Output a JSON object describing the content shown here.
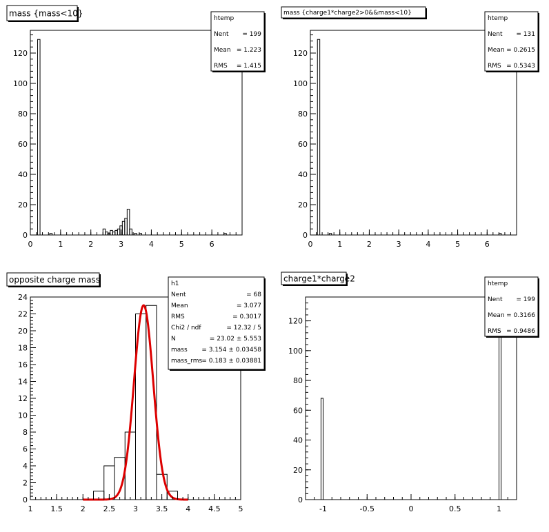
{
  "chart_data": [
    {
      "type": "histogram",
      "title": "mass {mass<10}",
      "xlim": [
        0,
        7
      ],
      "ylim": [
        0,
        135
      ],
      "xticks": [
        0,
        1,
        2,
        3,
        4,
        5,
        6
      ],
      "xtick_labels": [
        "0",
        "1",
        "2",
        "3",
        "4",
        "5",
        "6"
      ],
      "yticks": [
        0,
        20,
        40,
        60,
        80,
        100,
        120
      ],
      "ytick_labels": [
        "0",
        "20",
        "40",
        "60",
        "80",
        "100",
        "120"
      ],
      "bins": [
        {
          "x0": 0.24,
          "x1": 0.32,
          "y": 129
        },
        {
          "x0": 0.64,
          "x1": 0.72,
          "y": 1
        },
        {
          "x0": 2.4,
          "x1": 2.48,
          "y": 4
        },
        {
          "x0": 2.48,
          "x1": 2.56,
          "y": 2
        },
        {
          "x0": 2.56,
          "x1": 2.64,
          "y": 1
        },
        {
          "x0": 2.64,
          "x1": 2.72,
          "y": 3
        },
        {
          "x0": 2.72,
          "x1": 2.8,
          "y": 2
        },
        {
          "x0": 2.8,
          "x1": 2.88,
          "y": 3
        },
        {
          "x0": 2.88,
          "x1": 2.96,
          "y": 4
        },
        {
          "x0": 2.96,
          "x1": 3.04,
          "y": 6
        },
        {
          "x0": 3.04,
          "x1": 3.12,
          "y": 9
        },
        {
          "x0": 3.12,
          "x1": 3.2,
          "y": 11
        },
        {
          "x0": 3.2,
          "x1": 3.28,
          "y": 17
        },
        {
          "x0": 3.28,
          "x1": 3.36,
          "y": 4
        },
        {
          "x0": 3.44,
          "x1": 3.52,
          "y": 1
        },
        {
          "x0": 3.6,
          "x1": 3.68,
          "y": 1
        },
        {
          "x0": 6.4,
          "x1": 6.48,
          "y": 1
        }
      ],
      "stats_title": "htemp",
      "stats": [
        {
          "label": "Nent",
          "value": "= 199"
        },
        {
          "label": "Mean",
          "value": "= 1.223"
        },
        {
          "label": "RMS",
          "value": "= 1.415"
        }
      ],
      "fit": null
    },
    {
      "type": "histogram",
      "title": "mass {charge1*charge2>0&&mass<10}",
      "xlim": [
        0,
        7
      ],
      "ylim": [
        0,
        135
      ],
      "xticks": [
        0,
        1,
        2,
        3,
        4,
        5,
        6
      ],
      "xtick_labels": [
        "0",
        "1",
        "2",
        "3",
        "4",
        "5",
        "6"
      ],
      "yticks": [
        0,
        20,
        40,
        60,
        80,
        100,
        120
      ],
      "ytick_labels": [
        "0",
        "20",
        "40",
        "60",
        "80",
        "100",
        "120"
      ],
      "bins": [
        {
          "x0": 0.24,
          "x1": 0.32,
          "y": 129
        },
        {
          "x0": 0.64,
          "x1": 0.72,
          "y": 1
        },
        {
          "x0": 6.4,
          "x1": 6.48,
          "y": 1
        }
      ],
      "stats_title": "htemp",
      "stats": [
        {
          "label": "Nent",
          "value": "= 131"
        },
        {
          "label": "Mean",
          "value": "= 0.2615"
        },
        {
          "label": "RMS",
          "value": "= 0.5343"
        }
      ],
      "fit": null
    },
    {
      "type": "histogram",
      "title": "opposite charge mass",
      "xlim": [
        1,
        5
      ],
      "ylim": [
        0,
        24
      ],
      "xticks": [
        1,
        1.5,
        2,
        2.5,
        3,
        3.5,
        4,
        4.5,
        5
      ],
      "xtick_labels": [
        "1",
        "1.5",
        "2",
        "2.5",
        "3",
        "3.5",
        "4",
        "4.5",
        "5"
      ],
      "yticks": [
        0,
        2,
        4,
        6,
        8,
        10,
        12,
        14,
        16,
        18,
        20,
        22,
        24
      ],
      "ytick_labels": [
        "0",
        "2",
        "4",
        "6",
        "8",
        "10",
        "12",
        "14",
        "16",
        "18",
        "20",
        "22",
        "24"
      ],
      "bins": [
        {
          "x0": 2.2,
          "x1": 2.4,
          "y": 1
        },
        {
          "x0": 2.4,
          "x1": 2.6,
          "y": 4
        },
        {
          "x0": 2.6,
          "x1": 2.8,
          "y": 5
        },
        {
          "x0": 2.8,
          "x1": 3.0,
          "y": 8
        },
        {
          "x0": 3.0,
          "x1": 3.2,
          "y": 22
        },
        {
          "x0": 3.2,
          "x1": 3.4,
          "y": 23
        },
        {
          "x0": 3.4,
          "x1": 3.6,
          "y": 3
        },
        {
          "x0": 3.6,
          "x1": 3.8,
          "y": 1
        }
      ],
      "stats_title": "h1",
      "stats": [
        {
          "label": "Nent",
          "value": "= 68"
        },
        {
          "label": "Mean",
          "value": "= 3.077"
        },
        {
          "label": "RMS",
          "value": "= 0.3017"
        },
        {
          "label": "Chi2 / ndf",
          "value": "= 12.32 / 5"
        },
        {
          "label": "N",
          "value": "= 23.02 ± 5.553"
        },
        {
          "label": "mass",
          "value": "= 3.154 ± 0.03458"
        },
        {
          "label": "mass_rms",
          "value": "= 0.183 ± 0.03881"
        }
      ],
      "fit": {
        "type": "gaussian",
        "color": "#dd0000",
        "amplitude": 23.02,
        "mean": 3.154,
        "sigma": 0.183,
        "range": [
          2.0,
          4.0
        ]
      }
    },
    {
      "type": "histogram",
      "title": "charge1*charge2",
      "xlim": [
        -1.2,
        1.2
      ],
      "ylim": [
        0,
        136
      ],
      "xticks": [
        -1,
        -0.5,
        0,
        0.5,
        1
      ],
      "xtick_labels": [
        "-1",
        "-0.5",
        "0",
        "0.5",
        "1"
      ],
      "yticks": [
        0,
        20,
        40,
        60,
        80,
        100,
        120
      ],
      "ytick_labels": [
        "0",
        "20",
        "40",
        "60",
        "80",
        "100",
        "120"
      ],
      "bins": [
        {
          "x0": -1.024,
          "x1": -1.0,
          "y": 68
        },
        {
          "x0": 1.0,
          "x1": 1.024,
          "y": 131
        }
      ],
      "stats_title": "htemp",
      "stats": [
        {
          "label": "Nent",
          "value": "= 199"
        },
        {
          "label": "Mean",
          "value": "= 0.3166"
        },
        {
          "label": "RMS",
          "value": "= 0.9486"
        }
      ],
      "fit": null
    }
  ]
}
